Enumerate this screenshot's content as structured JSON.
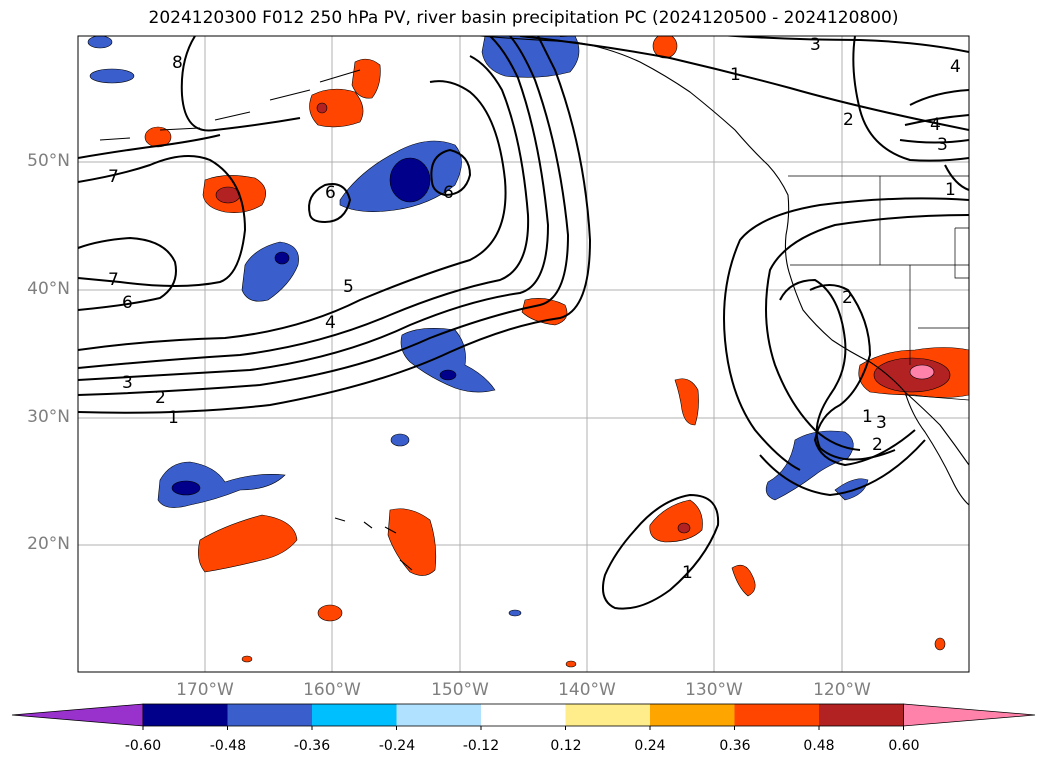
{
  "title": "2024120300 F012 250 hPa PV, river basin precipitation PC (2024120500 - 2024120800)",
  "lat_labels": [
    "50°N",
    "40°N",
    "30°N",
    "20°N"
  ],
  "lon_labels": [
    "170°W",
    "160°W",
    "150°W",
    "140°W",
    "130°W",
    "120°W"
  ],
  "contour_labels": [
    "8",
    "7",
    "7",
    "6",
    "6",
    "6",
    "5",
    "4",
    "3",
    "2",
    "1",
    "1",
    "1",
    "2",
    "3",
    "4",
    "3",
    "4",
    "2",
    "3",
    "2",
    "1",
    "1"
  ],
  "colorbar": {
    "ticks": [
      "-0.60",
      "-0.48",
      "-0.36",
      "-0.24",
      "-0.12",
      "0.12",
      "0.24",
      "0.36",
      "0.48",
      "0.60"
    ],
    "colors": [
      "#9932cc",
      "#00008b",
      "#3a5fcd",
      "#00bfff",
      "#b0e2ff",
      "#ffffff",
      "#ffec8b",
      "#ffa500",
      "#ff4500",
      "#b22222",
      "#ff82ab"
    ]
  }
}
